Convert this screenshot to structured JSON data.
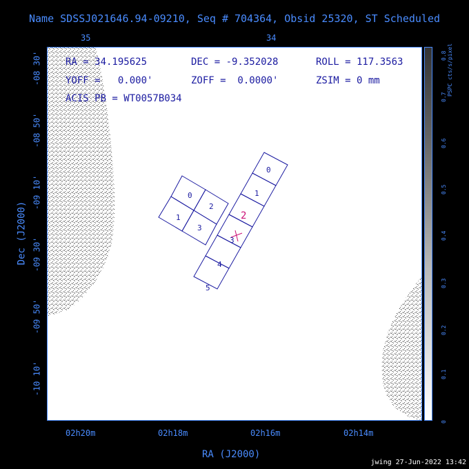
{
  "title": "Name SDSSJ021646.94-09210, Seq # 704364, Obsid 25320, ST Scheduled",
  "top_ticks": [
    "35",
    "34"
  ],
  "info": {
    "ra": "RA = 34.195625",
    "dec": "DEC = -9.352028",
    "roll": "ROLL = 117.3563",
    "yoff": "YOFF =   0.000'",
    "zoff": "ZOFF =  0.0000'",
    "zsim": "ZSIM = 0 mm",
    "acis_pb": "ACIS PB = WT0057B034"
  },
  "ra_axis": {
    "label": "RA (J2000)",
    "ticks": [
      "02h20m",
      "02h18m",
      "02h16m",
      "02h14m"
    ]
  },
  "dec_axis": {
    "label": "Dec (J2000)",
    "ticks": [
      "-08 30'",
      "-08 50'",
      "-09 10'",
      "-09 30'",
      "-09 50'",
      "-10 10'"
    ]
  },
  "colorbar": {
    "title": "PSPC cts/s/pixel",
    "ticks": [
      "0",
      "0.1",
      "0.2",
      "0.3",
      "0.4",
      "0.5",
      "0.6",
      "0.7",
      "0.8"
    ]
  },
  "chips": {
    "aci_i": [
      "0",
      "1",
      "2",
      "3"
    ],
    "aci_s": [
      "0",
      "1",
      "2",
      "3",
      "4",
      "5"
    ],
    "aimpoint_label": "2",
    "aimpoint_color": "#cc1177",
    "chip_color": "#1a1aa0"
  },
  "footer": "jwing 27-Jun-2022 13:42",
  "colors": {
    "accent": "#4a8cff",
    "text": "#1a1aa0",
    "bg": "#000000"
  }
}
